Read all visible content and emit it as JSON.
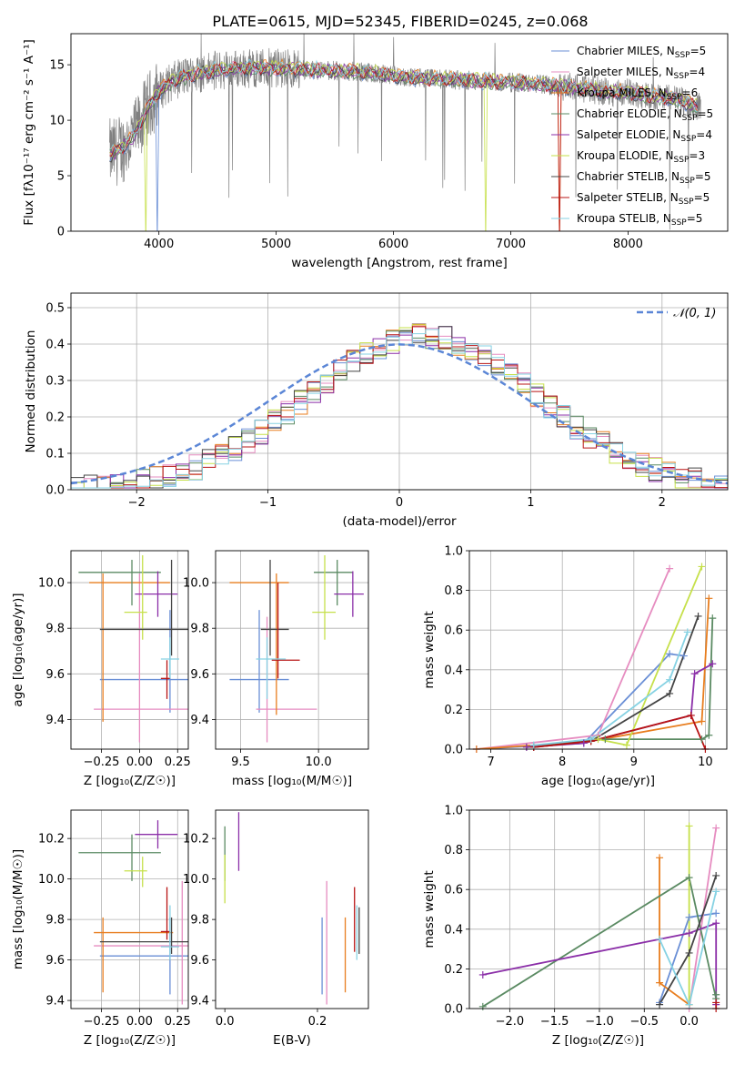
{
  "colors": [
    "#6a8fd6",
    "#e68cc0",
    "#e87d1e",
    "#5a8a62",
    "#8b2fa8",
    "#c6e04a",
    "#444444",
    "#b81414",
    "#86d2e3"
  ],
  "figure_title": "PLATE=0615, MJD=52345, FIBERID=0245, z=0.068",
  "chart_data": [
    {
      "id": "spectrum",
      "type": "line",
      "xlabel": "wavelength [Angstrom, rest frame]",
      "ylabel": "Flux [fλ10⁻¹⁷ erg cm⁻² s⁻¹ A⁻¹]",
      "xlim": [
        3250,
        8850
      ],
      "ylim": [
        0,
        17.8
      ],
      "xticks": [
        "4000",
        "5000",
        "6000",
        "7000",
        "8000"
      ],
      "xtick_values": [
        4000,
        5000,
        6000,
        7000,
        8000
      ],
      "yticks": [
        "0",
        "5",
        "10",
        "15"
      ],
      "ytick_values": [
        0,
        5,
        10,
        15
      ],
      "series_anchor_x": [
        3600,
        3700,
        3800,
        3900,
        4000,
        4100,
        4200,
        4400,
        4600,
        4800,
        5000,
        5200,
        5400,
        5600,
        5800,
        6000,
        6200,
        6400,
        6600,
        6800,
        7000,
        7200,
        7400,
        7600,
        7800,
        8000,
        8200,
        8400,
        8600
      ],
      "series_anchor_y": [
        7.0,
        7.6,
        8.8,
        11.0,
        12.6,
        13.4,
        13.9,
        14.4,
        14.6,
        14.7,
        14.7,
        14.6,
        14.5,
        14.4,
        14.3,
        14.0,
        13.8,
        13.7,
        13.6,
        13.5,
        13.4,
        13.3,
        13.1,
        12.9,
        12.6,
        12.5,
        12.2,
        11.9,
        11.2
      ],
      "legend": [
        {
          "label": "Chabrier MILES, N",
          "sub": "SSP",
          "val": "=5"
        },
        {
          "label": "Salpeter MILES, N",
          "sub": "SSP",
          "val": "=4"
        },
        {
          "label": "Kroupa MILES, N",
          "sub": "SSP",
          "val": "=6"
        },
        {
          "label": "Chabrier ELODIE, N",
          "sub": "SSP",
          "val": "=5"
        },
        {
          "label": "Salpeter ELODIE, N",
          "sub": "SSP",
          "val": "=4"
        },
        {
          "label": "Kroupa ELODIE, N",
          "sub": "SSP",
          "val": "=3"
        },
        {
          "label": "Chabrier STELIB, N",
          "sub": "SSP",
          "val": "=5"
        },
        {
          "label": "Salpeter STELIB, N",
          "sub": "SSP",
          "val": "=5"
        },
        {
          "label": "Kroupa STELIB, N",
          "sub": "SSP",
          "val": "=5"
        }
      ]
    },
    {
      "id": "residuals",
      "type": "bar",
      "xlabel": "(data-model)/error",
      "ylabel": "Normed distribution",
      "xlim": [
        -2.5,
        2.5
      ],
      "ylim": [
        0,
        0.54
      ],
      "xticks": [
        "−2",
        "−1",
        "0",
        "1",
        "2"
      ],
      "xtick_values": [
        -2,
        -1,
        0,
        1,
        2
      ],
      "yticks": [
        "0.0",
        "0.1",
        "0.2",
        "0.3",
        "0.4",
        "0.5"
      ],
      "ytick_values": [
        0,
        0.1,
        0.2,
        0.3,
        0.4,
        0.5
      ],
      "grid": true,
      "bin_width": 0.1,
      "legend_label": "𝒩(0, 1)",
      "legend_position": "top-right"
    },
    {
      "id": "age-vs-Z",
      "type": "scatter",
      "xlabel": "Z [log₁₀(Z/Z☉)]",
      "ylabel": "age  [log₁₀(age/yr)]",
      "xlim": [
        -0.45,
        0.32
      ],
      "ylim": [
        9.27,
        10.14
      ],
      "xticks": [
        "−0.25",
        "0.00",
        "0.25"
      ],
      "xtick_values": [
        -0.25,
        0,
        0.25
      ],
      "yticks": [
        "9.4",
        "9.6",
        "9.8",
        "10.0"
      ],
      "ytick_values": [
        9.4,
        9.6,
        9.8,
        10.0
      ],
      "grid": true,
      "points": [
        {
          "c": 0,
          "x": 0.2,
          "y": 9.575,
          "xe": [
            -0.26,
            0.35
          ],
          "ye": [
            9.43,
            9.88
          ]
        },
        {
          "c": 1,
          "x": 0.0,
          "y": 9.445,
          "xe": [
            -0.3,
            0.35
          ],
          "ye": [
            9.3,
            10.04
          ]
        },
        {
          "c": 2,
          "x": -0.24,
          "y": 10.0,
          "xe": [
            -0.33,
            0.2
          ],
          "ye": [
            9.39,
            10.04
          ]
        },
        {
          "c": 3,
          "x": -0.05,
          "y": 10.045,
          "xe": [
            -0.4,
            0.14
          ],
          "ye": [
            9.9,
            10.1
          ]
        },
        {
          "c": 4,
          "x": 0.12,
          "y": 9.95,
          "xe": [
            -0.03,
            0.25
          ],
          "ye": [
            9.85,
            10.05
          ]
        },
        {
          "c": 5,
          "x": 0.02,
          "y": 9.87,
          "xe": [
            -0.1,
            0.05
          ],
          "ye": [
            9.75,
            10.12
          ]
        },
        {
          "c": 6,
          "x": 0.21,
          "y": 9.795,
          "xe": [
            -0.26,
            0.35
          ],
          "ye": [
            9.68,
            10.1
          ]
        },
        {
          "c": 7,
          "x": 0.18,
          "y": 9.58,
          "xe": [
            0.14,
            0.2
          ],
          "ye": [
            9.49,
            9.66
          ]
        },
        {
          "c": 8,
          "x": 0.2,
          "y": 9.665,
          "xe": [
            0.14,
            0.26
          ],
          "ye": [
            9.58,
            9.76
          ]
        }
      ]
    },
    {
      "id": "age-vs-mass",
      "type": "scatter",
      "xlabel": "mass [log₁₀(M/M☉)]",
      "ylabel": "",
      "xlim": [
        9.34,
        10.32
      ],
      "ylim": [
        9.27,
        10.14
      ],
      "xticks": [
        "9.5",
        "10.0"
      ],
      "xtick_values": [
        9.5,
        10.0
      ],
      "yticks": [
        "9.4",
        "9.6",
        "9.8",
        "10.0"
      ],
      "ytick_values": [
        9.4,
        9.6,
        9.8,
        10.0
      ],
      "grid": true,
      "points": [
        {
          "c": 0,
          "x": 9.62,
          "y": 9.575,
          "xe": [
            9.43,
            9.81
          ],
          "ye": [
            9.43,
            9.88
          ]
        },
        {
          "c": 1,
          "x": 9.67,
          "y": 9.445,
          "xe": [
            9.6,
            9.99
          ],
          "ye": [
            9.3,
            9.85
          ]
        },
        {
          "c": 2,
          "x": 9.73,
          "y": 10.0,
          "xe": [
            9.43,
            9.81
          ],
          "ye": [
            9.42,
            10.04
          ]
        },
        {
          "c": 3,
          "x": 10.12,
          "y": 10.045,
          "xe": [
            9.97,
            10.22
          ],
          "ye": [
            9.9,
            10.1
          ]
        },
        {
          "c": 4,
          "x": 10.22,
          "y": 9.95,
          "xe": [
            10.1,
            10.29
          ],
          "ye": [
            9.85,
            10.05
          ]
        },
        {
          "c": 5,
          "x": 10.04,
          "y": 9.87,
          "xe": [
            9.96,
            10.11
          ],
          "ye": [
            9.75,
            10.12
          ]
        },
        {
          "c": 6,
          "x": 9.69,
          "y": 9.795,
          "xe": [
            9.63,
            9.81
          ],
          "ye": [
            9.68,
            10.1
          ]
        },
        {
          "c": 7,
          "x": 9.74,
          "y": 9.66,
          "xe": [
            9.7,
            9.88
          ],
          "ye": [
            9.58,
            10.0
          ]
        },
        {
          "c": 8,
          "x": 9.67,
          "y": 9.665,
          "xe": [
            9.6,
            9.79
          ],
          "ye": [
            9.49,
            9.76
          ]
        }
      ]
    },
    {
      "id": "massweight-vs-age",
      "type": "line",
      "xlabel": "age  [log₁₀(age/yr)]",
      "ylabel": "mass weight",
      "xlim": [
        6.7,
        10.3
      ],
      "ylim": [
        0,
        1.0
      ],
      "xticks": [
        "7",
        "8",
        "9",
        "10"
      ],
      "xtick_values": [
        7,
        8,
        9,
        10
      ],
      "yticks": [
        "0.0",
        "0.2",
        "0.4",
        "0.6",
        "0.8",
        "1.0"
      ],
      "ytick_values": [
        0,
        0.2,
        0.4,
        0.6,
        0.8,
        1.0
      ],
      "grid": true,
      "series": [
        {
          "c": 0,
          "x": [
            6.8,
            8.3,
            9.5,
            9.7
          ],
          "y": [
            0.0,
            0.03,
            0.48,
            0.47
          ]
        },
        {
          "c": 1,
          "x": [
            6.8,
            8.5,
            9.5
          ],
          "y": [
            0.0,
            0.07,
            0.91
          ]
        },
        {
          "c": 2,
          "x": [
            6.8,
            8.4,
            9.95,
            10.05
          ],
          "y": [
            0.0,
            0.04,
            0.14,
            0.76
          ]
        },
        {
          "c": 3,
          "x": [
            7.5,
            8.6,
            9.95,
            10.05,
            10.1
          ],
          "y": [
            0.01,
            0.05,
            0.05,
            0.07,
            0.66
          ]
        },
        {
          "c": 4,
          "x": [
            7.5,
            8.3,
            9.8,
            9.85,
            10.1
          ],
          "y": [
            0.01,
            0.03,
            0.17,
            0.38,
            0.43
          ]
        },
        {
          "c": 5,
          "x": [
            8.5,
            8.9,
            9.95
          ],
          "y": [
            0.05,
            0.02,
            0.92
          ]
        },
        {
          "c": 6,
          "x": [
            7.6,
            8.4,
            9.5,
            9.9
          ],
          "y": [
            0.01,
            0.04,
            0.28,
            0.67
          ]
        },
        {
          "c": 7,
          "x": [
            7.6,
            8.4,
            9.8,
            10.0
          ],
          "y": [
            0.01,
            0.04,
            0.17,
            0.0
          ]
        },
        {
          "c": 8,
          "x": [
            7.6,
            8.4,
            9.5,
            9.75
          ],
          "y": [
            0.02,
            0.05,
            0.35,
            0.59
          ]
        }
      ]
    },
    {
      "id": "mass-vs-Z",
      "type": "scatter",
      "xlabel": "Z [log₁₀(Z/Z☉)]",
      "ylabel": "mass [log₁₀(M/M☉)]",
      "xlim": [
        -0.45,
        0.32
      ],
      "ylim": [
        9.36,
        10.34
      ],
      "xticks": [
        "−0.25",
        "0.00",
        "0.25"
      ],
      "xtick_values": [
        -0.25,
        0,
        0.25
      ],
      "yticks": [
        "9.4",
        "9.6",
        "9.8",
        "10.0",
        "10.2"
      ],
      "ytick_values": [
        9.4,
        9.6,
        9.8,
        10.0,
        10.2
      ],
      "grid": true,
      "points": [
        {
          "c": 0,
          "x": 0.2,
          "y": 9.62,
          "xe": [
            -0.26,
            0.35
          ],
          "ye": [
            9.43,
            9.81
          ]
        },
        {
          "c": 1,
          "x": 0.28,
          "y": 9.67,
          "xe": [
            -0.3,
            0.35
          ],
          "ye": [
            9.38,
            9.99
          ]
        },
        {
          "c": 2,
          "x": -0.24,
          "y": 9.735,
          "xe": [
            -0.3,
            0.22
          ],
          "ye": [
            9.44,
            9.81
          ]
        },
        {
          "c": 3,
          "x": -0.05,
          "y": 10.13,
          "xe": [
            -0.4,
            0.14
          ],
          "ye": [
            9.99,
            10.22
          ]
        },
        {
          "c": 4,
          "x": 0.12,
          "y": 10.22,
          "xe": [
            -0.03,
            0.25
          ],
          "ye": [
            10.15,
            10.29
          ]
        },
        {
          "c": 5,
          "x": 0.02,
          "y": 10.04,
          "xe": [
            -0.1,
            0.05
          ],
          "ye": [
            9.96,
            10.11
          ]
        },
        {
          "c": 6,
          "x": 0.21,
          "y": 9.69,
          "xe": [
            -0.26,
            0.35
          ],
          "ye": [
            9.63,
            9.81
          ]
        },
        {
          "c": 7,
          "x": 0.18,
          "y": 9.74,
          "xe": [
            0.14,
            0.2
          ],
          "ye": [
            9.7,
            9.96
          ]
        },
        {
          "c": 8,
          "x": 0.2,
          "y": 9.665,
          "xe": [
            0.14,
            0.26
          ],
          "ye": [
            9.6,
            9.87
          ]
        }
      ]
    },
    {
      "id": "mass-vs-ebv",
      "type": "scatter",
      "xlabel": "E(B-V)",
      "ylabel": "",
      "xlim": [
        -0.02,
        0.31
      ],
      "ylim": [
        9.36,
        10.34
      ],
      "xticks": [
        "0.0",
        "0.2"
      ],
      "xtick_values": [
        0,
        0.2
      ],
      "yticks": [
        "9.4",
        "9.6",
        "9.8",
        "10.0",
        "10.2"
      ],
      "ytick_values": [
        9.4,
        9.6,
        9.8,
        10.0,
        10.2
      ],
      "grid": false,
      "points": [
        {
          "c": 0,
          "x": 0.21,
          "y": 9.62,
          "xe": [
            0.21,
            0.21
          ],
          "ye": [
            9.43,
            9.81
          ]
        },
        {
          "c": 1,
          "x": 0.22,
          "y": 9.67,
          "xe": [
            0.22,
            0.22
          ],
          "ye": [
            9.38,
            9.99
          ]
        },
        {
          "c": 2,
          "x": 0.26,
          "y": 9.6,
          "xe": [
            0.26,
            0.26
          ],
          "ye": [
            9.44,
            9.81
          ]
        },
        {
          "c": 3,
          "x": 0.0,
          "y": 10.13,
          "xe": [
            0.0,
            0.0
          ],
          "ye": [
            9.99,
            10.26
          ]
        },
        {
          "c": 4,
          "x": 0.03,
          "y": 10.22,
          "xe": [
            0.03,
            0.03
          ],
          "ye": [
            10.04,
            10.33
          ]
        },
        {
          "c": 5,
          "x": 0.0,
          "y": 10.0,
          "xe": [
            0.0,
            0.0
          ],
          "ye": [
            9.88,
            10.12
          ]
        },
        {
          "c": 6,
          "x": 0.29,
          "y": 9.72,
          "xe": [
            0.29,
            0.29
          ],
          "ye": [
            9.63,
            9.86
          ]
        },
        {
          "c": 7,
          "x": 0.28,
          "y": 9.8,
          "xe": [
            0.28,
            0.28
          ],
          "ye": [
            9.64,
            9.96
          ]
        },
        {
          "c": 8,
          "x": 0.285,
          "y": 9.7,
          "xe": [
            0.285,
            0.285
          ],
          "ye": [
            9.6,
            9.87
          ]
        }
      ]
    },
    {
      "id": "massweight-vs-Z",
      "type": "line",
      "xlabel": "Z [log₁₀(Z/Z☉)]",
      "ylabel": "mass weight",
      "xlim": [
        -2.45,
        0.42
      ],
      "ylim": [
        0,
        1.0
      ],
      "xticks": [
        "−2.0",
        "−1.5",
        "−1.0",
        "−0.5",
        "0.0"
      ],
      "xtick_values": [
        -2.0,
        -1.5,
        -1.0,
        -0.5,
        0
      ],
      "yticks": [
        "0.0",
        "0.2",
        "0.4",
        "0.6",
        "0.8",
        "1.0"
      ],
      "ytick_values": [
        0,
        0.2,
        0.4,
        0.6,
        0.8,
        1.0
      ],
      "grid": true,
      "series": [
        {
          "c": 0,
          "x": [
            -0.33,
            0.0,
            0.3
          ],
          "y": [
            0.03,
            0.46,
            0.48
          ]
        },
        {
          "c": 1,
          "x": [
            0.0,
            0.3
          ],
          "y": [
            0.0,
            0.91
          ]
        },
        {
          "c": 2,
          "x": [
            -0.33,
            -0.33,
            0.0
          ],
          "y": [
            0.76,
            0.13,
            0.02
          ]
        },
        {
          "c": 3,
          "x": [
            -2.3,
            0.0,
            0.3,
            0.3
          ],
          "y": [
            0.01,
            0.66,
            0.05,
            0.07
          ]
        },
        {
          "c": 4,
          "x": [
            -2.3,
            0.0,
            0.3,
            0.3
          ],
          "y": [
            0.17,
            0.38,
            0.43,
            0.02
          ]
        },
        {
          "c": 5,
          "x": [
            0.0,
            0.0
          ],
          "y": [
            0.92,
            0.02
          ]
        },
        {
          "c": 6,
          "x": [
            -0.33,
            0.0,
            0.3
          ],
          "y": [
            0.02,
            0.28,
            0.67
          ]
        },
        {
          "c": 7,
          "x": [
            0.3,
            0.3
          ],
          "y": [
            0.03,
            0.0
          ]
        },
        {
          "c": 8,
          "x": [
            -0.33,
            0.0,
            0.3
          ],
          "y": [
            0.35,
            0.02,
            0.59
          ]
        }
      ]
    }
  ]
}
